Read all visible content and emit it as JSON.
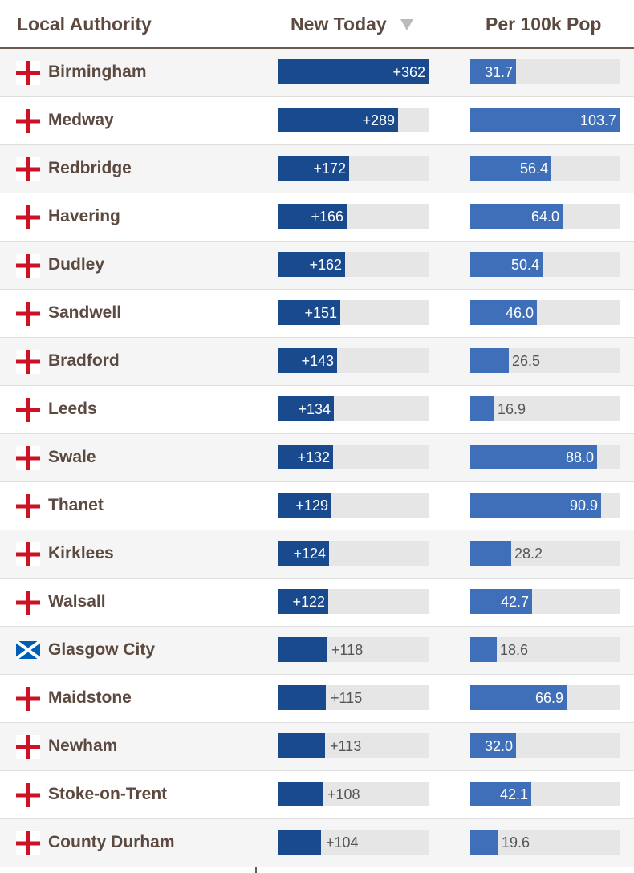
{
  "header": {
    "col_authority": "Local Authority",
    "col_new_today": "New Today",
    "col_per_100k": "Per 100k Pop",
    "sort_indicator_icon": "sort-desc-triangle-icon"
  },
  "scales": {
    "new_today_max": 362,
    "per_100k_max": 103.7
  },
  "colors": {
    "new_today_bar": "#1a4a8e",
    "per_100k_bar": "#3e6fb8",
    "track": "#e6e6e6",
    "text": "#5c4a40"
  },
  "rows": [
    {
      "flag": "england-flag-icon",
      "name": "Birmingham",
      "new_today": 362,
      "new_today_label": "+362",
      "per_100k": 31.7,
      "per_100k_label": "31.7"
    },
    {
      "flag": "england-flag-icon",
      "name": "Medway",
      "new_today": 289,
      "new_today_label": "+289",
      "per_100k": 103.7,
      "per_100k_label": "103.7"
    },
    {
      "flag": "england-flag-icon",
      "name": "Redbridge",
      "new_today": 172,
      "new_today_label": "+172",
      "per_100k": 56.4,
      "per_100k_label": "56.4"
    },
    {
      "flag": "england-flag-icon",
      "name": "Havering",
      "new_today": 166,
      "new_today_label": "+166",
      "per_100k": 64.0,
      "per_100k_label": "64.0"
    },
    {
      "flag": "england-flag-icon",
      "name": "Dudley",
      "new_today": 162,
      "new_today_label": "+162",
      "per_100k": 50.4,
      "per_100k_label": "50.4"
    },
    {
      "flag": "england-flag-icon",
      "name": "Sandwell",
      "new_today": 151,
      "new_today_label": "+151",
      "per_100k": 46.0,
      "per_100k_label": "46.0"
    },
    {
      "flag": "england-flag-icon",
      "name": "Bradford",
      "new_today": 143,
      "new_today_label": "+143",
      "per_100k": 26.5,
      "per_100k_label": "26.5"
    },
    {
      "flag": "england-flag-icon",
      "name": "Leeds",
      "new_today": 134,
      "new_today_label": "+134",
      "per_100k": 16.9,
      "per_100k_label": "16.9"
    },
    {
      "flag": "england-flag-icon",
      "name": "Swale",
      "new_today": 132,
      "new_today_label": "+132",
      "per_100k": 88.0,
      "per_100k_label": "88.0"
    },
    {
      "flag": "england-flag-icon",
      "name": "Thanet",
      "new_today": 129,
      "new_today_label": "+129",
      "per_100k": 90.9,
      "per_100k_label": "90.9"
    },
    {
      "flag": "england-flag-icon",
      "name": "Kirklees",
      "new_today": 124,
      "new_today_label": "+124",
      "per_100k": 28.2,
      "per_100k_label": "28.2"
    },
    {
      "flag": "england-flag-icon",
      "name": "Walsall",
      "new_today": 122,
      "new_today_label": "+122",
      "per_100k": 42.7,
      "per_100k_label": "42.7"
    },
    {
      "flag": "scotland-flag-icon",
      "name": "Glasgow City",
      "new_today": 118,
      "new_today_label": "+118",
      "per_100k": 18.6,
      "per_100k_label": "18.6"
    },
    {
      "flag": "england-flag-icon",
      "name": "Maidstone",
      "new_today": 115,
      "new_today_label": "+115",
      "per_100k": 66.9,
      "per_100k_label": "66.9"
    },
    {
      "flag": "england-flag-icon",
      "name": "Newham",
      "new_today": 113,
      "new_today_label": "+113",
      "per_100k": 32.0,
      "per_100k_label": "32.0"
    },
    {
      "flag": "england-flag-icon",
      "name": "Stoke-on-Trent",
      "new_today": 108,
      "new_today_label": "+108",
      "per_100k": 42.1,
      "per_100k_label": "42.1"
    },
    {
      "flag": "england-flag-icon",
      "name": "County Durham",
      "new_today": 104,
      "new_today_label": "+104",
      "per_100k": 19.6,
      "per_100k_label": "19.6"
    }
  ]
}
